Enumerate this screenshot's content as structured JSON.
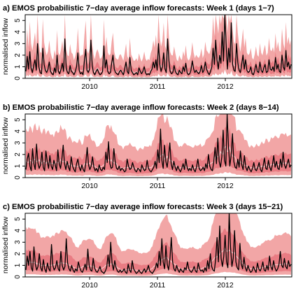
{
  "chart_data": [
    {
      "type": "line",
      "title": "a) EMOS probabilistic 7−day average inflow forecasts: Week 1 (days 1−7)",
      "ylabel": "normalised inflow",
      "xlabel": "",
      "ylim": [
        0,
        5.5
      ],
      "yticks": [
        "0",
        "1",
        "2",
        "3",
        "4",
        "5"
      ],
      "x_tick_labels": [
        "2010",
        "2011",
        "2012"
      ],
      "x_range_years": [
        2009.05,
        2012.98
      ],
      "grid": false,
      "colors": {
        "observed": "#000000",
        "outer_band": "#f2a6a6",
        "inner_band": "#e8747c",
        "median": "#f7c7c7"
      },
      "series": [
        {
          "values": [
            0.6,
            1.9,
            0.8,
            2.3,
            0.9,
            0.5,
            1.1,
            1.6,
            0.7,
            3.0,
            1.0,
            0.5,
            0.4,
            2.6,
            1.2,
            0.7,
            0.5,
            0.8,
            1.4,
            0.6,
            0.4,
            0.3,
            0.9,
            0.5,
            2.0,
            0.6,
            0.4,
            0.8,
            1.3,
            0.6,
            3.4,
            0.9,
            0.5,
            0.4,
            1.1,
            0.6,
            0.5,
            0.3,
            0.6,
            1.0,
            2.2,
            0.7,
            0.4,
            0.5,
            0.3,
            1.5,
            2.5,
            0.7,
            0.5,
            0.8,
            3.3,
            1.1,
            0.5,
            0.3,
            0.6,
            0.8,
            0.5,
            0.3,
            0.4,
            0.6,
            2.8,
            0.9,
            1.6,
            0.6,
            0.4,
            0.5,
            1.3,
            2.0,
            0.8,
            0.5,
            0.4,
            0.3,
            0.6,
            0.7,
            0.5,
            0.3,
            0.8,
            1.4,
            0.6,
            0.4,
            1.8,
            0.7,
            0.5,
            0.3,
            0.4,
            0.5,
            0.3,
            0.9,
            0.6,
            0.4,
            0.6,
            1.0,
            0.5,
            0.3,
            0.4,
            0.3,
            0.6,
            0.8,
            1.4,
            0.9,
            1.6,
            0.7,
            3.0,
            1.2,
            0.6,
            1.0,
            2.2,
            0.8,
            0.5,
            3.4,
            1.5,
            0.6,
            0.4,
            0.5,
            1.1,
            0.6,
            0.4,
            0.3,
            0.7,
            0.5,
            0.4,
            1.0,
            0.6,
            1.3,
            0.5,
            0.3,
            0.4,
            0.7,
            1.5,
            0.8,
            0.5,
            0.7,
            0.5,
            0.4,
            0.6,
            1.1,
            0.5,
            0.7,
            1.4,
            0.8,
            0.5,
            0.3,
            0.6,
            1.0,
            2.6,
            1.2,
            3.3,
            1.6,
            0.8,
            2.0,
            1.3,
            4.0,
            1.5,
            5.8,
            3.0,
            0.8,
            2.6,
            1.4,
            4.8,
            1.2,
            0.7,
            0.6,
            3.0,
            1.4,
            0.7,
            0.5,
            1.2,
            2.0,
            0.8,
            1.6,
            0.7,
            0.5,
            0.6,
            1.0,
            0.4,
            0.3,
            0.7,
            1.2,
            0.6,
            0.5,
            1.4,
            0.7,
            0.5,
            0.9,
            1.2,
            0.5,
            0.6,
            1.6,
            0.8,
            0.7,
            1.0,
            0.6,
            1.8,
            0.8,
            1.2,
            0.6,
            0.5,
            2.0,
            1.0,
            0.7,
            2.4,
            1.0,
            1.4,
            0.8,
            1.2
          ]
        }
      ]
    },
    {
      "type": "line",
      "title": "b) EMOS probabilistic 7−day average inflow forecasts: Week 2 (days 8−14)",
      "ylabel": "normalised inflow",
      "xlabel": "",
      "ylim": [
        0,
        5.5
      ],
      "yticks": [
        "0",
        "1",
        "2",
        "3",
        "4",
        "5"
      ],
      "x_tick_labels": [
        "2010",
        "2011",
        "2012"
      ],
      "x_range_years": [
        2009.05,
        2012.98
      ],
      "grid": false,
      "colors": {
        "observed": "#000000",
        "outer_band": "#f2a6a6",
        "inner_band": "#e8747c",
        "median": "#f7c7c7"
      },
      "series": [
        {
          "values": [
            0.7,
            1.6,
            2.1,
            1.0,
            0.6,
            2.5,
            1.2,
            0.7,
            2.9,
            1.3,
            0.8,
            1.1,
            2.2,
            0.9,
            0.6,
            2.3,
            1.4,
            0.8,
            1.9,
            1.0,
            0.7,
            1.5,
            1.1,
            0.6,
            2.4,
            1.2,
            0.8,
            1.6,
            2.8,
            1.2,
            0.7,
            1.4,
            0.9,
            0.6,
            1.8,
            1.0,
            0.7,
            0.5,
            1.2,
            1.6,
            0.9,
            0.6,
            1.1,
            0.7,
            0.5,
            1.3,
            2.6,
            1.1,
            0.7,
            1.0,
            1.8,
            0.9,
            0.6,
            0.8,
            0.5,
            1.1,
            0.7,
            0.6,
            0.9,
            0.7,
            2.2,
            1.3,
            3.1,
            1.2,
            0.8,
            0.9,
            2.5,
            1.4,
            0.8,
            0.7,
            1.0,
            0.6,
            0.8,
            0.7,
            0.5,
            0.6,
            1.6,
            1.0,
            0.7,
            0.8,
            1.3,
            0.9,
            0.6,
            0.5,
            0.8,
            0.7,
            0.5,
            1.1,
            0.8,
            0.6,
            0.7,
            1.5,
            0.8,
            0.6,
            0.5,
            0.7,
            0.9,
            1.4,
            0.8,
            2.4,
            1.3,
            4.2,
            1.5,
            0.8,
            2.8,
            1.4,
            0.9,
            1.8,
            3.0,
            1.2,
            0.7,
            1.4,
            0.9,
            0.6,
            1.0,
            0.7,
            0.5,
            0.8,
            1.2,
            0.7,
            1.6,
            0.9,
            0.6,
            0.8,
            0.6,
            1.1,
            0.7,
            0.5,
            0.9,
            1.6,
            0.8,
            0.6,
            0.7,
            0.9,
            0.6,
            1.2,
            0.8,
            2.0,
            1.0,
            0.7,
            0.6,
            1.4,
            2.6,
            1.2,
            3.4,
            1.4,
            0.9,
            1.8,
            4.1,
            1.5,
            1.0,
            5.6,
            2.7,
            1.0,
            1.9,
            3.8,
            1.4,
            0.9,
            0.8,
            1.6,
            0.9,
            2.3,
            1.1,
            0.7,
            1.9,
            0.9,
            0.6,
            1.0,
            0.7,
            0.5,
            0.8,
            1.3,
            0.7,
            0.6,
            0.9,
            1.3,
            0.7,
            0.5,
            1.0,
            1.7,
            0.8,
            0.7,
            1.5,
            0.9,
            0.6,
            1.1,
            1.9,
            0.9,
            1.4,
            0.8,
            0.7,
            1.6,
            0.9,
            2.2,
            1.1,
            0.8,
            1.2,
            1.6,
            0.9,
            1.1
          ]
        }
      ]
    },
    {
      "type": "line",
      "title": "c) EMOS probabilistic 7−day average inflow forecasts: Week 3 (days 15−21)",
      "ylabel": "normalised inflow",
      "xlabel": "",
      "ylim": [
        0,
        5.5
      ],
      "yticks": [
        "0",
        "1",
        "2",
        "3",
        "4",
        "5"
      ],
      "x_tick_labels": [
        "2010",
        "2011",
        "2012"
      ],
      "x_range_years": [
        2009.05,
        2012.98
      ],
      "grid": false,
      "colors": {
        "observed": "#000000",
        "outer_band": "#f2a6a6",
        "inner_band": "#e8747c",
        "median": "#f7c7c7"
      },
      "series": [
        {
          "values": [
            0.6,
            1.8,
            1.0,
            2.2,
            0.8,
            0.5,
            2.6,
            1.1,
            0.6,
            0.9,
            2.0,
            0.8,
            0.5,
            1.5,
            0.7,
            0.4,
            1.2,
            0.7,
            0.5,
            2.8,
            1.0,
            0.6,
            0.8,
            1.4,
            0.7,
            0.5,
            2.2,
            1.0,
            0.6,
            0.9,
            3.3,
            1.2,
            0.7,
            0.5,
            1.0,
            0.6,
            0.4,
            0.7,
            0.5,
            1.3,
            0.8,
            0.5,
            0.4,
            0.7,
            1.1,
            0.6,
            2.4,
            1.0,
            0.6,
            0.5,
            1.6,
            0.8,
            0.5,
            0.4,
            0.6,
            0.9,
            0.5,
            0.4,
            0.3,
            0.5,
            0.8,
            1.9,
            0.9,
            3.0,
            1.2,
            0.6,
            1.4,
            0.8,
            0.5,
            0.4,
            0.6,
            0.4,
            0.5,
            0.7,
            0.4,
            0.3,
            1.1,
            0.6,
            0.4,
            1.4,
            0.7,
            0.5,
            0.3,
            0.4,
            0.6,
            0.4,
            0.3,
            0.5,
            0.7,
            0.4,
            0.6,
            1.0,
            0.5,
            0.4,
            0.3,
            0.5,
            0.7,
            1.2,
            0.8,
            2.2,
            1.0,
            3.3,
            1.3,
            0.7,
            2.7,
            1.1,
            0.6,
            1.6,
            3.4,
            1.3,
            0.7,
            0.5,
            1.0,
            0.6,
            0.4,
            0.7,
            0.5,
            0.4,
            0.8,
            0.6,
            1.3,
            0.7,
            0.5,
            0.4,
            0.6,
            0.9,
            0.5,
            0.4,
            1.2,
            0.7,
            0.5,
            0.6,
            0.4,
            0.8,
            0.5,
            1.4,
            0.7,
            2.0,
            0.9,
            0.6,
            0.5,
            1.6,
            3.4,
            1.3,
            4.4,
            1.6,
            0.9,
            1.8,
            3.6,
            1.3,
            0.8,
            5.7,
            2.6,
            0.9,
            1.6,
            4.0,
            1.3,
            0.8,
            0.6,
            2.9,
            1.1,
            0.7,
            1.7,
            0.8,
            0.5,
            1.0,
            0.6,
            0.4,
            0.5,
            0.9,
            0.6,
            0.4,
            1.2,
            0.7,
            0.5,
            0.8,
            1.3,
            0.6,
            0.5,
            1.0,
            0.6,
            1.8,
            0.9,
            0.6,
            1.4,
            0.8,
            0.5,
            0.7,
            1.1,
            2.2,
            1.0,
            0.8,
            1.6,
            0.9,
            0.7,
            1.4,
            0.9,
            1.1
          ]
        }
      ]
    }
  ]
}
